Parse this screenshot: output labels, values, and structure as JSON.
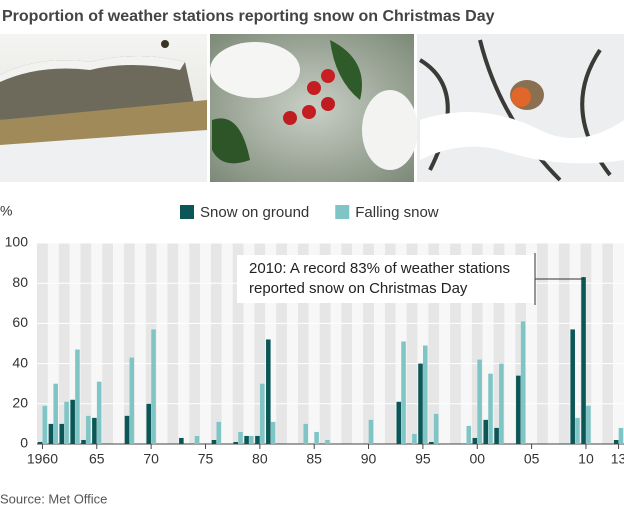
{
  "chart_data": {
    "type": "bar",
    "title": "Proportion of weather stations reporting snow on Christmas Day",
    "y_label": "%",
    "source": "Source: Met Office",
    "annotation": [
      "2010: A record 83% of weather stations",
      "reported snow on Christmas Day"
    ],
    "x": [
      1960,
      1961,
      1962,
      1963,
      1964,
      1965,
      1966,
      1967,
      1968,
      1969,
      1970,
      1971,
      1972,
      1973,
      1974,
      1975,
      1976,
      1977,
      1978,
      1979,
      1980,
      1981,
      1982,
      1983,
      1984,
      1985,
      1986,
      1987,
      1988,
      1989,
      1990,
      1991,
      1992,
      1993,
      1994,
      1995,
      1996,
      1997,
      1998,
      1999,
      2000,
      2001,
      2002,
      2003,
      2004,
      2005,
      2006,
      2007,
      2008,
      2009,
      2010,
      2011,
      2012,
      2013
    ],
    "series": [
      {
        "name": "Snow on ground",
        "color": "#0b5757",
        "values": [
          1,
          10,
          10,
          22,
          2,
          13,
          0,
          0,
          14,
          0,
          20,
          0,
          0,
          3,
          0,
          0,
          2,
          0,
          1,
          4,
          4,
          52,
          0,
          0,
          0,
          0,
          0,
          0,
          0,
          0,
          0,
          0,
          0,
          21,
          0,
          40,
          1,
          0,
          0,
          0,
          3,
          12,
          8,
          0,
          34,
          0,
          0,
          0,
          0,
          57,
          83,
          0,
          0,
          2
        ]
      },
      {
        "name": "Falling snow",
        "color": "#80c5c6",
        "values": [
          19,
          30,
          21,
          47,
          14,
          31,
          0,
          0,
          43,
          0,
          57,
          0,
          0,
          0,
          4,
          0,
          11,
          0,
          6,
          4,
          30,
          11,
          0,
          0,
          10,
          6,
          2,
          0,
          0,
          0,
          12,
          0,
          0,
          51,
          5,
          49,
          15,
          0,
          0,
          9,
          42,
          35,
          40,
          0,
          61,
          0,
          0,
          0,
          0,
          13,
          19,
          0,
          0,
          8
        ]
      }
    ],
    "xlim": [
      1959.5,
      2013.5
    ],
    "xticks": [
      {
        "value": 1960,
        "label": "1960"
      },
      {
        "value": 1965,
        "label": "65"
      },
      {
        "value": 1970,
        "label": "70"
      },
      {
        "value": 1975,
        "label": "75"
      },
      {
        "value": 1980,
        "label": "80"
      },
      {
        "value": 1985,
        "label": "85"
      },
      {
        "value": 1990,
        "label": "90"
      },
      {
        "value": 1995,
        "label": "95"
      },
      {
        "value": 2000,
        "label": "00"
      },
      {
        "value": 2005,
        "label": "05"
      },
      {
        "value": 2010,
        "label": "10"
      },
      {
        "value": 2013,
        "label": "13"
      }
    ],
    "ylim": [
      0,
      100
    ],
    "yticks": [
      0,
      20,
      40,
      60,
      80,
      100
    ],
    "grid": true,
    "legend": "top"
  }
}
